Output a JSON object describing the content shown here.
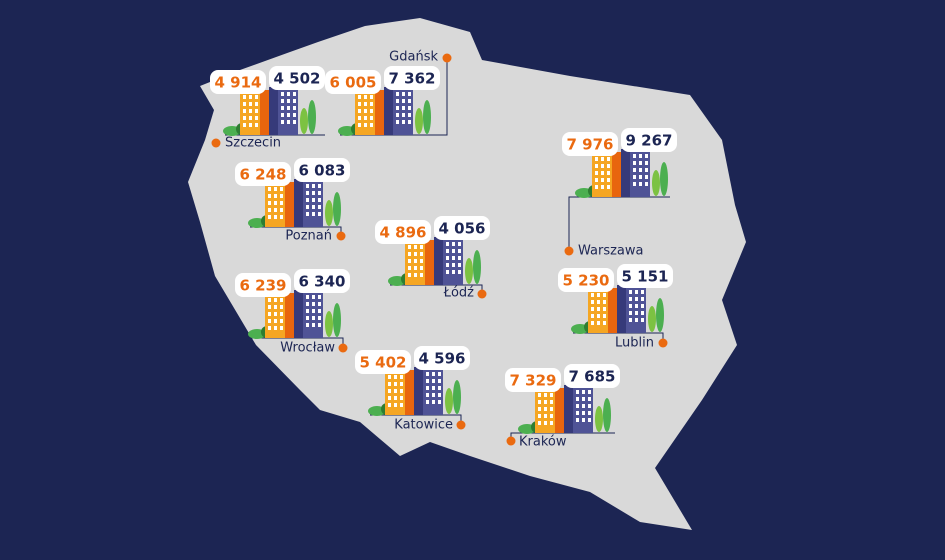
{
  "cities": [
    {
      "name": "Szczecin",
      "value_a": "4 914",
      "value_b": "4 502"
    },
    {
      "name": "Gdańsk",
      "value_a": "6 005",
      "value_b": "7 362"
    },
    {
      "name": "Warszawa",
      "value_a": "7 976",
      "value_b": "9 267"
    },
    {
      "name": "Poznań",
      "value_a": "6 248",
      "value_b": "6 083"
    },
    {
      "name": "Łódź",
      "value_a": "4 896",
      "value_b": "4 056"
    },
    {
      "name": "Lublin",
      "value_a": "5 230",
      "value_b": "5 151"
    },
    {
      "name": "Wrocław",
      "value_a": "6 239",
      "value_b": "6 340"
    },
    {
      "name": "Katowice",
      "value_a": "5 402",
      "value_b": "4 596"
    },
    {
      "name": "Kraków",
      "value_a": "7 329",
      "value_b": "7 685"
    }
  ]
}
